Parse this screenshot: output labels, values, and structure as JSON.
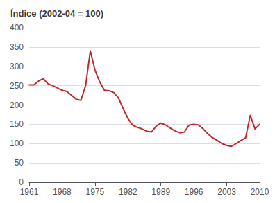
{
  "chart_data": {
    "type": "line",
    "title": "Índice (2002-04 = 100)",
    "x": [
      1961,
      1962,
      1963,
      1964,
      1965,
      1966,
      1967,
      1968,
      1969,
      1970,
      1971,
      1972,
      1973,
      1974,
      1975,
      1976,
      1977,
      1978,
      1979,
      1980,
      1981,
      1982,
      1983,
      1984,
      1985,
      1986,
      1987,
      1988,
      1989,
      1990,
      1991,
      1992,
      1993,
      1994,
      1995,
      1996,
      1997,
      1998,
      1999,
      2000,
      2001,
      2002,
      2003,
      2004,
      2005,
      2006,
      2007,
      2008,
      2009,
      2010
    ],
    "values": [
      252,
      252,
      262,
      268,
      255,
      250,
      244,
      238,
      235,
      225,
      215,
      212,
      250,
      340,
      290,
      260,
      238,
      237,
      232,
      218,
      190,
      165,
      148,
      142,
      138,
      132,
      130,
      145,
      153,
      148,
      140,
      133,
      128,
      130,
      148,
      150,
      148,
      138,
      125,
      115,
      108,
      100,
      95,
      93,
      100,
      108,
      115,
      173,
      138,
      150
    ],
    "color": "#c0292b",
    "xlim": [
      1961,
      2010
    ],
    "xticks": [
      1961,
      1968,
      1975,
      1982,
      1989,
      1996,
      2003,
      2010
    ],
    "ylim": [
      0,
      400
    ],
    "yticks": [
      0,
      50,
      100,
      150,
      200,
      250,
      300,
      350,
      400
    ],
    "grid": true
  }
}
